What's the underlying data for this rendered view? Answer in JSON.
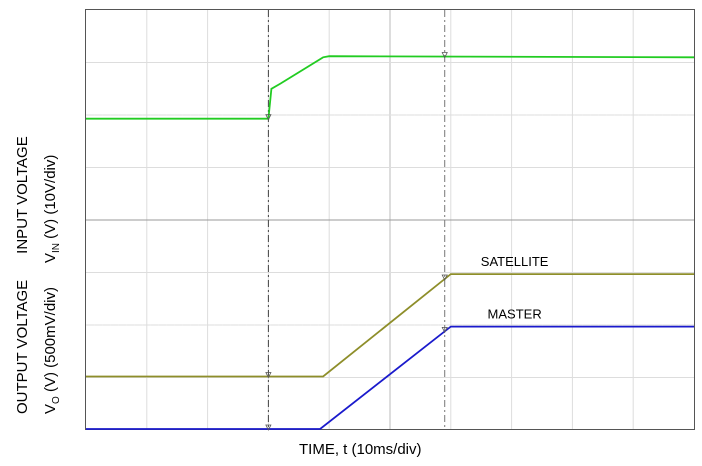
{
  "chart_data": {
    "type": "line",
    "xlabel": "TIME, t (10ms/div)",
    "x_divisions": 10,
    "panels": [
      {
        "position": "top",
        "ylabel_line1": "INPUT VOLTAGE",
        "ylabel_line2_main": "V",
        "ylabel_line2_sub": "IN",
        "ylabel_line2_rest": " (V) (10V/div)",
        "series": [
          {
            "color": "#22cc22",
            "points": [
              [
                0,
                1.93
              ],
              [
                3.0,
                1.93
              ],
              [
                3.05,
                2.5
              ],
              [
                3.2,
                2.6
              ],
              [
                3.9,
                3.1
              ],
              [
                4.0,
                3.12
              ],
              [
                10.0,
                3.1
              ]
            ]
          }
        ]
      },
      {
        "position": "bottom",
        "ylabel_line1": "OUTPUT VOLTAGE",
        "ylabel_line2_main": "V",
        "ylabel_line2_sub": "O",
        "ylabel_line2_rest": " (V) (500mV/div)",
        "series": [
          {
            "name": "SATELLITE",
            "color": "#8e8e2a",
            "points": [
              [
                0,
                1.0
              ],
              [
                3.9,
                1.0
              ],
              [
                6.0,
                2.95
              ],
              [
                10.0,
                2.95
              ]
            ]
          },
          {
            "name": "MASTER",
            "color": "#1a1acc",
            "points": [
              [
                0,
                0.0
              ],
              [
                3.85,
                0.0
              ],
              [
                6.0,
                1.95
              ],
              [
                10.0,
                1.95
              ]
            ]
          }
        ]
      }
    ],
    "cursor_lines_div": [
      3.0,
      5.9
    ]
  }
}
